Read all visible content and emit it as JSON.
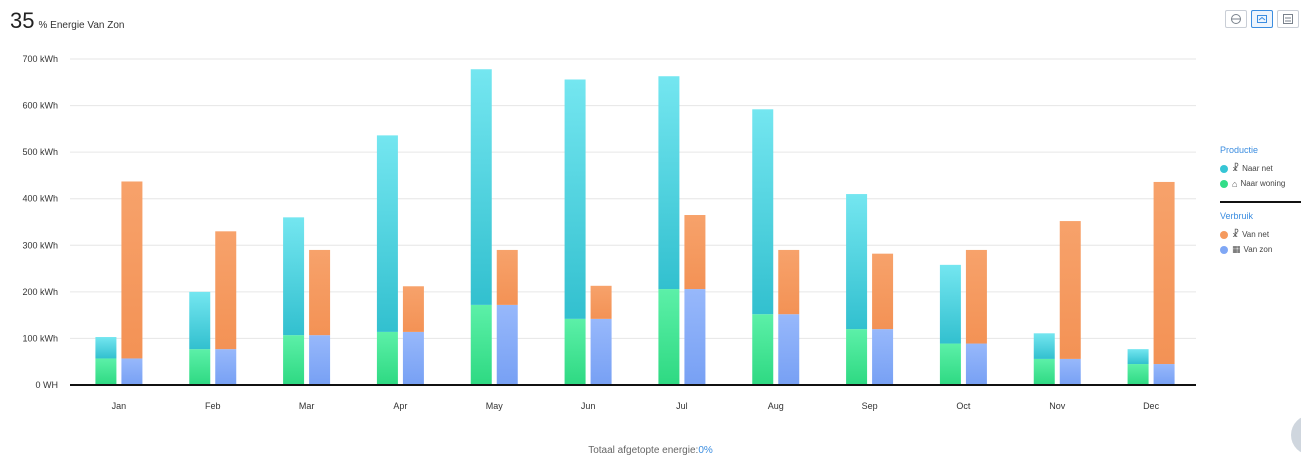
{
  "header": {
    "percent": "35",
    "subtitle": "% Energie Van Zon"
  },
  "toggles": [
    {
      "icon": "chart-type-icon",
      "active": false
    },
    {
      "icon": "stacked-bar-icon",
      "active": true
    },
    {
      "icon": "grouped-bar-icon",
      "active": false
    }
  ],
  "legend": {
    "productie_title": "Productie",
    "productie_items": [
      {
        "label": "Naar net",
        "icon": "power-pylon-icon",
        "color": "#36c5d5"
      },
      {
        "label": "Naar woning",
        "icon": "house-icon",
        "color": "#33dd88"
      }
    ],
    "verbruik_title": "Verbruik",
    "verbruik_items": [
      {
        "label": "Van net",
        "icon": "power-pylon-icon",
        "color": "#f59a5e"
      },
      {
        "label": "Van zon",
        "icon": "solar-panel-icon",
        "color": "#7fa7f5"
      }
    ]
  },
  "footer": {
    "label": "Totaal afgetopte energie:",
    "value": "0%"
  },
  "chart_data": {
    "type": "bar",
    "stacked": true,
    "ylim": [
      0,
      700
    ],
    "yticks": [
      "0 WH",
      "100 kWh",
      "200 kWh",
      "300 kWh",
      "400 kWh",
      "500 kWh",
      "600 kWh",
      "700 kWh"
    ],
    "categories": [
      "Jan",
      "Feb",
      "Mar",
      "Apr",
      "May",
      "Jun",
      "Jul",
      "Aug",
      "Sep",
      "Oct",
      "Nov",
      "Dec"
    ],
    "grid": true,
    "legend_position": "right",
    "stacks": [
      {
        "stack": "Productie",
        "series": [
          {
            "name": "Naar woning",
            "color": "#33dd88",
            "values": [
              57,
              77,
              107,
              114,
              172,
              142,
              206,
              152,
              120,
              89,
              56,
              45
            ]
          },
          {
            "name": "Naar net",
            "color": "#36c5d5",
            "values": [
              46,
              123,
              253,
              422,
              506,
              514,
              457,
              440,
              290,
              169,
              55,
              32
            ]
          }
        ]
      },
      {
        "stack": "Verbruik",
        "series": [
          {
            "name": "Van zon",
            "color": "#7fa7f5",
            "values": [
              57,
              77,
              107,
              114,
              172,
              142,
              206,
              152,
              120,
              89,
              56,
              45
            ]
          },
          {
            "name": "Van net",
            "color": "#f59a5e",
            "values": [
              380,
              253,
              183,
              98,
              118,
              71,
              159,
              138,
              162,
              201,
              296,
              391
            ]
          }
        ]
      }
    ]
  }
}
